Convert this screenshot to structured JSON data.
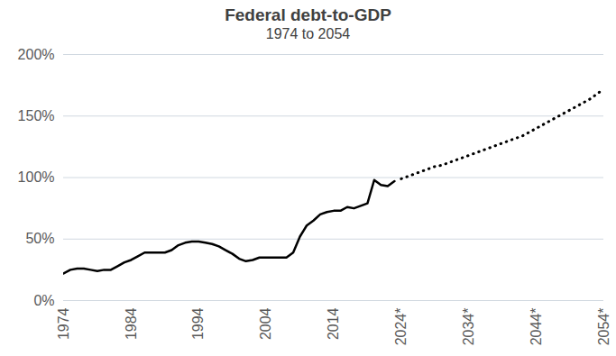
{
  "chart_data": {
    "type": "line",
    "title": "Federal debt-to-GDP",
    "subtitle": "1974 to 2054",
    "x": [
      1974,
      1975,
      1976,
      1977,
      1978,
      1979,
      1980,
      1981,
      1982,
      1983,
      1984,
      1985,
      1986,
      1987,
      1988,
      1989,
      1990,
      1991,
      1992,
      1993,
      1994,
      1995,
      1996,
      1997,
      1998,
      1999,
      2000,
      2001,
      2002,
      2003,
      2004,
      2005,
      2006,
      2007,
      2008,
      2009,
      2010,
      2011,
      2012,
      2013,
      2014,
      2015,
      2016,
      2017,
      2018,
      2019,
      2020,
      2021,
      2022,
      2023,
      2024,
      2025,
      2026,
      2027,
      2028,
      2029,
      2030,
      2031,
      2032,
      2033,
      2034,
      2035,
      2036,
      2037,
      2038,
      2039,
      2040,
      2041,
      2042,
      2043,
      2044,
      2045,
      2046,
      2047,
      2048,
      2049,
      2050,
      2051,
      2052,
      2053,
      2054
    ],
    "series": [
      {
        "color": "#000000",
        "line_style": "solid",
        "values": [
          22,
          25,
          26,
          26,
          25,
          24,
          25,
          25,
          28,
          31,
          33,
          36,
          39,
          39,
          39,
          39,
          41,
          45,
          47,
          48,
          48,
          47,
          46,
          44,
          41,
          38,
          34,
          32,
          33,
          35,
          35,
          35,
          35,
          35,
          39,
          52,
          61,
          65,
          70,
          72,
          73,
          73,
          76,
          75,
          77,
          79,
          98,
          94,
          93,
          97,
          null,
          null,
          null,
          null,
          null,
          null,
          null,
          null,
          null,
          null,
          null,
          null,
          null,
          null,
          null,
          null,
          null,
          null,
          null,
          null,
          null,
          null,
          null,
          null,
          null,
          null,
          null,
          null,
          null,
          null,
          null
        ]
      },
      {
        "color": "#000000",
        "line_style": "dotted",
        "values": [
          null,
          null,
          null,
          null,
          null,
          null,
          null,
          null,
          null,
          null,
          null,
          null,
          null,
          null,
          null,
          null,
          null,
          null,
          null,
          null,
          null,
          null,
          null,
          null,
          null,
          null,
          null,
          null,
          null,
          null,
          null,
          null,
          null,
          null,
          null,
          null,
          null,
          null,
          null,
          null,
          null,
          null,
          null,
          null,
          null,
          null,
          null,
          null,
          null,
          null,
          99,
          101,
          103,
          105,
          107,
          109,
          110,
          112,
          114,
          116,
          118,
          120,
          122,
          124,
          126,
          128,
          130,
          132,
          134,
          137,
          140,
          143,
          146,
          149,
          152,
          155,
          158,
          161,
          164,
          168,
          172
        ]
      }
    ],
    "xlim": [
      1974,
      2054
    ],
    "xticks": [
      1974,
      1984,
      1994,
      2004,
      2014,
      {
        "value": 2024,
        "label": "2024*"
      },
      {
        "value": 2034,
        "label": "2034*"
      },
      {
        "value": 2044,
        "label": "2044*"
      },
      {
        "value": 2054,
        "label": "2054*"
      }
    ],
    "ylim": [
      0,
      200
    ],
    "yticks": [
      {
        "value": 0,
        "label": "0%"
      },
      {
        "value": 50,
        "label": "50%"
      },
      {
        "value": 100,
        "label": "100%"
      },
      {
        "value": 150,
        "label": "150%"
      },
      {
        "value": 200,
        "label": "200%"
      }
    ],
    "grid": true
  }
}
